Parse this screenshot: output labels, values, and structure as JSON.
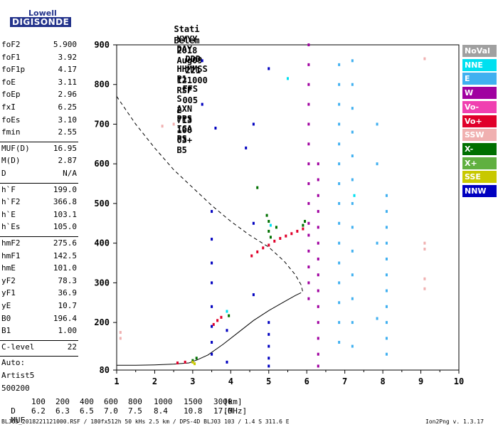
{
  "logo": {
    "line1": "Lowell",
    "line2": "DIGISONDE"
  },
  "header": {
    "labels": [
      "Stati",
      "YYYY",
      "DAY",
      "DDD",
      "HHMMSS",
      "P1",
      "FFS",
      "S",
      "AXN",
      "PPS",
      "IGA",
      "PS"
    ],
    "values": [
      "Belem",
      "2018",
      "Aug09",
      "221",
      "121000",
      "RSF",
      "005",
      "2",
      "713",
      "100",
      "03+",
      "B5"
    ]
  },
  "params": {
    "group1": [
      {
        "name": "foF2",
        "value": "5.900"
      },
      {
        "name": "foF1",
        "value": "3.92"
      },
      {
        "name": "foF1p",
        "value": "4.17"
      },
      {
        "name": "foE",
        "value": "3.11"
      },
      {
        "name": "foEp",
        "value": "2.96"
      },
      {
        "name": "fxI",
        "value": "6.25"
      },
      {
        "name": "foEs",
        "value": "3.10"
      },
      {
        "name": "fmin",
        "value": "2.55"
      }
    ],
    "group2": [
      {
        "name": "MUF(D)",
        "value": "16.95"
      },
      {
        "name": "M(D)",
        "value": "2.87"
      },
      {
        "name": "D",
        "value": "N/A"
      }
    ],
    "group3": [
      {
        "name": "h`F",
        "value": "199.0"
      },
      {
        "name": "h`F2",
        "value": "366.8"
      },
      {
        "name": "h`E",
        "value": "103.1"
      },
      {
        "name": "h`Es",
        "value": "105.0"
      }
    ],
    "group4": [
      {
        "name": "hmF2",
        "value": "275.6"
      },
      {
        "name": "hmF1",
        "value": "142.5"
      },
      {
        "name": "hmE",
        "value": "101.0"
      },
      {
        "name": "yF2",
        "value": "78.3"
      },
      {
        "name": "yF1",
        "value": "36.9"
      },
      {
        "name": "yE",
        "value": "10.7"
      },
      {
        "name": "B0",
        "value": "196.4"
      },
      {
        "name": "B1",
        "value": "1.00"
      }
    ],
    "clevel": {
      "name": "C-level",
      "value": "22"
    },
    "auto": [
      "Auto:",
      "Artist5",
      "500200"
    ]
  },
  "legend": [
    {
      "label": "NoVal",
      "color": "#a0a0a0"
    },
    {
      "label": "NNE",
      "color": "#00e0f0"
    },
    {
      "label": "E",
      "color": "#40b0f0"
    },
    {
      "label": "W",
      "color": "#a000a0"
    },
    {
      "label": "Vo-",
      "color": "#f040b0"
    },
    {
      "label": "Vo+",
      "color": "#e0002a"
    },
    {
      "label": "SSW",
      "color": "#f0b0b0"
    },
    {
      "label": "X-",
      "color": "#007000"
    },
    {
      "label": "X+",
      "color": "#60b040"
    },
    {
      "label": "SSE",
      "color": "#c8c800"
    },
    {
      "label": "NNW",
      "color": "#0000c0"
    }
  ],
  "chart_data": {
    "type": "scatter",
    "xlim": [
      1,
      10
    ],
    "ylim": [
      80,
      900
    ],
    "x_ticks": [
      "1",
      "2",
      "3",
      "4",
      "5",
      "6",
      "7",
      "8",
      "9",
      "10"
    ],
    "y_ticks": [
      "80",
      "200",
      "300",
      "400",
      "500",
      "600",
      "700",
      "800",
      "900"
    ],
    "series": [
      {
        "name": "Vo+",
        "color": "#e0002a",
        "points": [
          [
            4.55,
            368
          ],
          [
            4.7,
            378
          ],
          [
            4.85,
            388
          ],
          [
            5.0,
            395
          ],
          [
            5.15,
            405
          ],
          [
            5.3,
            412
          ],
          [
            5.45,
            418
          ],
          [
            5.6,
            424
          ],
          [
            5.75,
            430
          ],
          [
            5.9,
            436
          ],
          [
            3.55,
            195
          ],
          [
            3.65,
            205
          ],
          [
            3.75,
            213
          ],
          [
            2.6,
            98
          ],
          [
            2.8,
            100
          ],
          [
            3.0,
            102
          ]
        ]
      },
      {
        "name": "W",
        "color": "#a000a0",
        "points": [
          [
            6.05,
            900
          ],
          [
            6.05,
            850
          ],
          [
            6.05,
            800
          ],
          [
            6.05,
            750
          ],
          [
            6.05,
            700
          ],
          [
            6.05,
            650
          ],
          [
            6.05,
            600
          ],
          [
            6.05,
            550
          ],
          [
            6.05,
            500
          ],
          [
            6.05,
            450
          ],
          [
            6.05,
            420
          ],
          [
            6.05,
            380
          ],
          [
            6.05,
            340
          ],
          [
            6.05,
            300
          ],
          [
            6.05,
            260
          ],
          [
            6.3,
            600
          ],
          [
            6.3,
            560
          ],
          [
            6.3,
            520
          ],
          [
            6.3,
            480
          ],
          [
            6.3,
            440
          ],
          [
            6.3,
            400
          ],
          [
            6.3,
            360
          ],
          [
            6.3,
            320
          ],
          [
            6.3,
            280
          ],
          [
            6.3,
            240
          ],
          [
            6.3,
            200
          ],
          [
            6.3,
            160
          ],
          [
            6.3,
            120
          ],
          [
            6.3,
            90
          ]
        ]
      },
      {
        "name": "E",
        "color": "#40b0f0",
        "points": [
          [
            6.85,
            850
          ],
          [
            6.85,
            800
          ],
          [
            6.85,
            750
          ],
          [
            6.85,
            700
          ],
          [
            6.85,
            650
          ],
          [
            6.85,
            600
          ],
          [
            6.85,
            550
          ],
          [
            6.85,
            500
          ],
          [
            6.85,
            450
          ],
          [
            6.85,
            400
          ],
          [
            6.85,
            350
          ],
          [
            6.85,
            300
          ],
          [
            6.85,
            250
          ],
          [
            6.85,
            200
          ],
          [
            6.85,
            150
          ],
          [
            7.2,
            860
          ],
          [
            7.2,
            800
          ],
          [
            7.2,
            740
          ],
          [
            7.2,
            680
          ],
          [
            7.2,
            620
          ],
          [
            7.2,
            560
          ],
          [
            7.2,
            500
          ],
          [
            7.2,
            440
          ],
          [
            7.2,
            380
          ],
          [
            7.2,
            320
          ],
          [
            7.2,
            260
          ],
          [
            7.2,
            200
          ],
          [
            7.2,
            140
          ],
          [
            8.1,
            520
          ],
          [
            8.1,
            480
          ],
          [
            8.1,
            440
          ],
          [
            8.1,
            400
          ],
          [
            8.1,
            360
          ],
          [
            8.1,
            320
          ],
          [
            8.1,
            280
          ],
          [
            8.1,
            240
          ],
          [
            8.1,
            200
          ],
          [
            8.1,
            160
          ],
          [
            8.1,
            120
          ],
          [
            7.85,
            700
          ],
          [
            7.85,
            600
          ],
          [
            7.85,
            400
          ],
          [
            7.85,
            210
          ]
        ]
      },
      {
        "name": "NNW",
        "color": "#0000c0",
        "points": [
          [
            3.25,
            860
          ],
          [
            3.25,
            750
          ],
          [
            3.5,
            480
          ],
          [
            3.5,
            410
          ],
          [
            3.5,
            350
          ],
          [
            3.5,
            300
          ],
          [
            3.5,
            240
          ],
          [
            3.5,
            190
          ],
          [
            3.5,
            150
          ],
          [
            3.5,
            120
          ],
          [
            3.9,
            180
          ],
          [
            3.9,
            100
          ],
          [
            4.4,
            640
          ],
          [
            4.6,
            450
          ],
          [
            4.6,
            270
          ],
          [
            5.0,
            840
          ],
          [
            5.0,
            200
          ],
          [
            5.0,
            170
          ],
          [
            5.0,
            140
          ],
          [
            5.0,
            110
          ],
          [
            5.0,
            90
          ],
          [
            4.6,
            700
          ],
          [
            3.6,
            690
          ]
        ]
      },
      {
        "name": "X-",
        "color": "#007000",
        "points": [
          [
            4.95,
            470
          ],
          [
            5.0,
            455
          ],
          [
            5.0,
            430
          ],
          [
            5.05,
            415
          ],
          [
            5.2,
            440
          ],
          [
            5.9,
            445
          ],
          [
            5.95,
            455
          ],
          [
            4.7,
            540
          ],
          [
            3.95,
            217
          ],
          [
            3.1,
            110
          ],
          [
            3.0,
            104
          ]
        ]
      },
      {
        "name": "SSW",
        "color": "#f0b0b0",
        "points": [
          [
            2.2,
            695
          ],
          [
            2.5,
            700
          ],
          [
            9.1,
            400
          ],
          [
            9.1,
            385
          ],
          [
            9.1,
            310
          ],
          [
            9.1,
            285
          ],
          [
            1.1,
            160
          ],
          [
            1.1,
            175
          ],
          [
            9.1,
            865
          ]
        ]
      },
      {
        "name": "NNE",
        "color": "#00e0f0",
        "points": [
          [
            5.05,
            445
          ],
          [
            5.5,
            815
          ],
          [
            7.25,
            520
          ],
          [
            3.9,
            228
          ]
        ]
      },
      {
        "name": "SSE",
        "color": "#c8c800",
        "points": [
          [
            3.05,
            96
          ],
          [
            3.0,
            100
          ]
        ]
      }
    ],
    "height_curve": {
      "name": "profile",
      "points": [
        [
          1.0,
          92
        ],
        [
          1.5,
          92
        ],
        [
          2.0,
          93
        ],
        [
          2.5,
          95
        ],
        [
          2.9,
          98
        ],
        [
          3.1,
          105
        ],
        [
          3.4,
          118
        ],
        [
          3.8,
          145
        ],
        [
          4.2,
          175
        ],
        [
          4.6,
          205
        ],
        [
          5.0,
          230
        ],
        [
          5.4,
          252
        ],
        [
          5.7,
          268
        ],
        [
          5.85,
          275
        ]
      ]
    },
    "dashed_curve": {
      "name": "model",
      "points": [
        [
          1.0,
          770
        ],
        [
          1.5,
          700
        ],
        [
          2.0,
          640
        ],
        [
          2.5,
          585
        ],
        [
          3.0,
          540
        ],
        [
          3.5,
          495
        ],
        [
          4.0,
          455
        ],
        [
          4.5,
          420
        ],
        [
          5.0,
          390
        ],
        [
          5.4,
          355
        ],
        [
          5.7,
          320
        ],
        [
          5.85,
          295
        ],
        [
          5.9,
          275
        ]
      ]
    }
  },
  "footer": {
    "d_label": "D",
    "d_values": [
      "100",
      "200",
      "400",
      "600",
      "800",
      "1000",
      "1500",
      "3000"
    ],
    "d_unit": "[km]",
    "muf_label": "MUF",
    "muf_values": [
      "6.2",
      "6.3",
      "6.5",
      "7.0",
      "7.5",
      "8.4",
      "10.8",
      "17.0"
    ],
    "muf_unit": "[MHz]",
    "file_info": "BLJ03_2018221121000.RSF / 180fx512h 50 kHs 2.5 km / DPS-4D BLJ03 103 / 1.4 S 311.6 E",
    "version": "Ion2Png v. 1.3.17"
  }
}
